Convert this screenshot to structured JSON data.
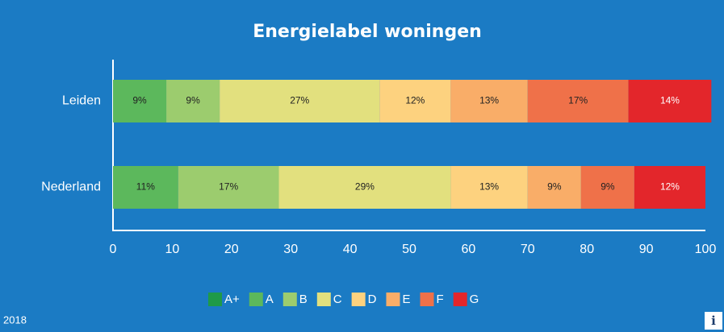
{
  "chart_data": {
    "type": "stacked-bar-horizontal",
    "title": "Energielabel woningen",
    "categories": [
      "Leiden",
      "Nederland"
    ],
    "series": [
      {
        "name": "A+",
        "color": "#1f9a48",
        "values": [
          0,
          0
        ]
      },
      {
        "name": "A",
        "color": "#5cb85c",
        "values": [
          9,
          11
        ],
        "value_labels": [
          "9%",
          "11%"
        ]
      },
      {
        "name": "B",
        "color": "#9ccc6e",
        "values": [
          9,
          17
        ],
        "value_labels": [
          "9%",
          "17%"
        ]
      },
      {
        "name": "C",
        "color": "#e2e07e",
        "values": [
          27,
          29
        ],
        "value_labels": [
          "27%",
          "29%"
        ]
      },
      {
        "name": "D",
        "color": "#fdd27f",
        "values": [
          12,
          13
        ],
        "value_labels": [
          "12%",
          "13%"
        ]
      },
      {
        "name": "E",
        "color": "#f9ad68",
        "values": [
          13,
          9
        ],
        "value_labels": [
          "13%",
          "9%"
        ]
      },
      {
        "name": "F",
        "color": "#ef7149",
        "values": [
          17,
          9
        ],
        "value_labels": [
          "17%",
          "9%"
        ]
      },
      {
        "name": "G",
        "color": "#e3262b",
        "values": [
          14,
          12
        ],
        "value_labels": [
          "14%",
          "12%"
        ]
      }
    ],
    "xlim": [
      0,
      100
    ],
    "xticks": [
      0,
      10,
      20,
      30,
      40,
      50,
      60,
      70,
      80,
      90,
      100
    ],
    "footer": "2018",
    "info_icon": "i"
  }
}
